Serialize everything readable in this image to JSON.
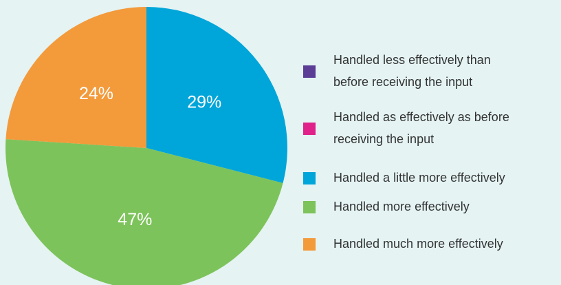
{
  "chart_data": {
    "type": "pie",
    "categories": [
      "Handled less effectively than\nbefore receiving the input",
      "Handled as effectively as before\nreceiving the input",
      "Handled a little more effectively",
      "Handled more effectively",
      "Handled much more effectively"
    ],
    "values": [
      0,
      0,
      29,
      47,
      24
    ],
    "value_labels": [
      null,
      null,
      "29%",
      "47%",
      "24%"
    ],
    "colors": [
      "#5b3d96",
      "#e0218a",
      "#00a6d9",
      "#7dc35b",
      "#f39a3b"
    ],
    "legend": "right"
  }
}
